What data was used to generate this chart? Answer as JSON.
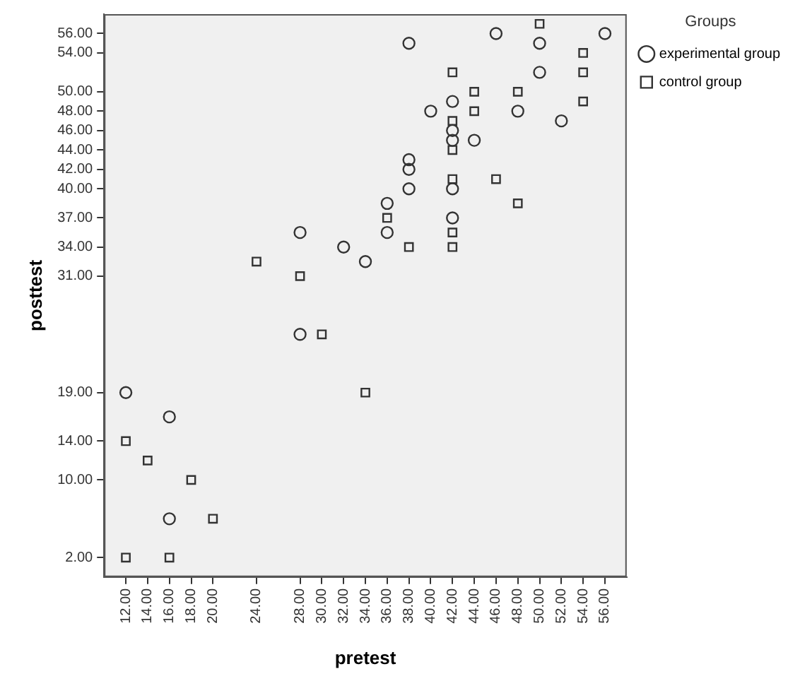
{
  "chart_data": {
    "type": "scatter",
    "xlabel": "pretest",
    "ylabel": "posttest",
    "legend_title": "Groups",
    "legend": "top right",
    "grid": false,
    "xlim": [
      10,
      58
    ],
    "xticks": [
      {
        "value": 12,
        "label": "12.00"
      },
      {
        "value": 14,
        "label": "14.00"
      },
      {
        "value": 16,
        "label": "16.00"
      },
      {
        "value": 18,
        "label": "18.00"
      },
      {
        "value": 20,
        "label": "20.00"
      },
      {
        "value": 24,
        "label": "24.00"
      },
      {
        "value": 28,
        "label": "28.00"
      },
      {
        "value": 30,
        "label": "30.00"
      },
      {
        "value": 32,
        "label": "32.00"
      },
      {
        "value": 34,
        "label": "34.00"
      },
      {
        "value": 36,
        "label": "36.00"
      },
      {
        "value": 38,
        "label": "38.00"
      },
      {
        "value": 40,
        "label": "40.00"
      },
      {
        "value": 42,
        "label": "42.00"
      },
      {
        "value": 44,
        "label": "44.00"
      },
      {
        "value": 46,
        "label": "46.00"
      },
      {
        "value": 48,
        "label": "48.00"
      },
      {
        "value": 50,
        "label": "50.00"
      },
      {
        "value": 52,
        "label": "52.00"
      },
      {
        "value": 54,
        "label": "54.00"
      },
      {
        "value": 56,
        "label": "56.00"
      }
    ],
    "ylim": [
      0,
      58
    ],
    "yticks": [
      {
        "value": 2,
        "label": "2.00"
      },
      {
        "value": 10,
        "label": "10.00"
      },
      {
        "value": 14,
        "label": "14.00"
      },
      {
        "value": 19,
        "label": "19.00"
      },
      {
        "value": 31,
        "label": "31.00"
      },
      {
        "value": 34,
        "label": "34.00"
      },
      {
        "value": 37,
        "label": "37.00"
      },
      {
        "value": 40,
        "label": "40.00"
      },
      {
        "value": 42,
        "label": "42.00"
      },
      {
        "value": 44,
        "label": "44.00"
      },
      {
        "value": 46,
        "label": "46.00"
      },
      {
        "value": 48,
        "label": "48.00"
      },
      {
        "value": 50,
        "label": "50.00"
      },
      {
        "value": 54,
        "label": "54.00"
      },
      {
        "value": 56,
        "label": "56.00"
      }
    ],
    "series": [
      {
        "name": "experimental group",
        "color": "#333333",
        "marker": "circle",
        "x": [
          36,
          36,
          28,
          32,
          34,
          28,
          12,
          16,
          16,
          46,
          56,
          38,
          50,
          50,
          42,
          40,
          48,
          52,
          42,
          42,
          44,
          38,
          38,
          38,
          42,
          42
        ],
        "values": [
          38.5,
          35.5,
          35.5,
          34,
          32.5,
          25,
          19,
          16.5,
          6,
          56,
          56,
          55,
          55,
          52,
          49,
          48,
          48,
          47,
          46,
          45,
          45,
          43,
          42,
          40,
          40,
          37
        ]
      },
      {
        "name": "control group",
        "color": "#333333",
        "marker": "square",
        "x": [
          36,
          24,
          28,
          30,
          34,
          12,
          14,
          18,
          20,
          12,
          16,
          50,
          54,
          42,
          54,
          44,
          48,
          54,
          44,
          42,
          42,
          42,
          46,
          48,
          42,
          38,
          42
        ],
        "values": [
          37,
          32.5,
          31,
          25,
          19,
          14,
          12,
          10,
          6,
          2,
          2,
          57,
          54,
          52,
          52,
          50,
          50,
          49,
          48,
          47,
          44,
          41,
          41,
          38.5,
          35.5,
          34,
          34
        ]
      }
    ]
  }
}
